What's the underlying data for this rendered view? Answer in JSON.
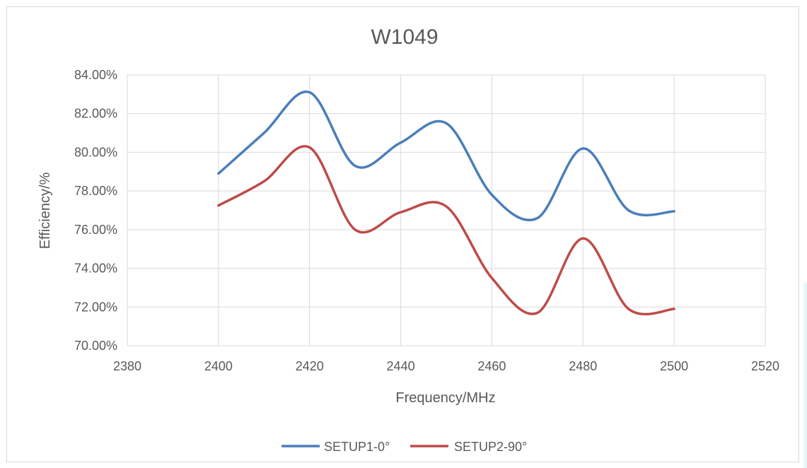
{
  "chart_data": {
    "type": "line",
    "title": "W1049",
    "xlabel": "Frequency/MHz",
    "ylabel": "Efficiency/%",
    "xlim": [
      2380,
      2520
    ],
    "ylim": [
      70,
      84
    ],
    "x_ticks": [
      "2380",
      "2400",
      "2420",
      "2440",
      "2460",
      "2480",
      "2500",
      "2520"
    ],
    "y_ticks": [
      "70.00%",
      "72.00%",
      "74.00%",
      "76.00%",
      "78.00%",
      "80.00%",
      "82.00%",
      "84.00%"
    ],
    "grid": true,
    "smooth": true,
    "legend_position": "bottom",
    "x": [
      2400,
      2410,
      2420,
      2430,
      2440,
      2450,
      2460,
      2470,
      2480,
      2490,
      2500
    ],
    "series": [
      {
        "name": "SETUP1-0°",
        "color": "#4a7ebb",
        "values": [
          78.9,
          81.0,
          83.1,
          79.3,
          80.5,
          81.5,
          77.8,
          76.6,
          80.2,
          77.0,
          76.95
        ]
      },
      {
        "name": "SETUP2-90°",
        "color": "#be4b48",
        "values": [
          77.25,
          78.5,
          80.25,
          76.0,
          76.9,
          77.2,
          73.5,
          71.7,
          75.55,
          71.9,
          71.9
        ]
      }
    ]
  }
}
